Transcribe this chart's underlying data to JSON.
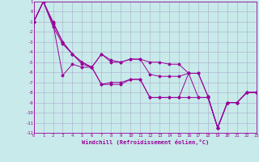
{
  "xlabel": "Windchill (Refroidissement éolien,°C)",
  "bg_color": "#c8eaea",
  "line_color": "#990099",
  "grid_color": "#aaaacc",
  "xlim": [
    0,
    23
  ],
  "ylim": [
    -12,
    1
  ],
  "yticks": [
    1,
    0,
    -1,
    -2,
    -3,
    -4,
    -5,
    -6,
    -7,
    -8,
    -9,
    -10,
    -11,
    -12
  ],
  "xticks": [
    0,
    1,
    2,
    3,
    4,
    5,
    6,
    7,
    8,
    9,
    10,
    11,
    12,
    13,
    14,
    15,
    16,
    17,
    18,
    19,
    20,
    21,
    22,
    23
  ],
  "lines": {
    "line1": [
      [
        0,
        -1.0
      ],
      [
        1,
        1.0
      ],
      [
        2,
        -1.0
      ],
      [
        3,
        -3.0
      ],
      [
        4,
        -4.2
      ],
      [
        5,
        -5.0
      ],
      [
        6,
        -5.5
      ],
      [
        7,
        -4.2
      ],
      [
        8,
        -5.0
      ],
      [
        9,
        -5.0
      ],
      [
        10,
        -4.7
      ],
      [
        11,
        -4.7
      ],
      [
        12,
        -5.0
      ],
      [
        13,
        -5.0
      ],
      [
        14,
        -5.2
      ],
      [
        15,
        -5.2
      ],
      [
        16,
        -6.1
      ],
      [
        17,
        -6.1
      ],
      [
        18,
        -8.4
      ],
      [
        19,
        -11.5
      ],
      [
        20,
        -9.0
      ],
      [
        21,
        -9.0
      ],
      [
        22,
        -8.0
      ],
      [
        23,
        -8.0
      ]
    ],
    "line2": [
      [
        0,
        -1.0
      ],
      [
        1,
        1.0
      ],
      [
        2,
        -1.2
      ],
      [
        3,
        -6.3
      ],
      [
        4,
        -5.2
      ],
      [
        5,
        -5.5
      ],
      [
        6,
        -5.5
      ],
      [
        7,
        -7.2
      ],
      [
        8,
        -7.0
      ],
      [
        9,
        -7.0
      ],
      [
        10,
        -6.7
      ],
      [
        11,
        -6.7
      ],
      [
        12,
        -8.5
      ],
      [
        13,
        -8.5
      ],
      [
        14,
        -8.5
      ],
      [
        15,
        -8.5
      ],
      [
        16,
        -8.5
      ],
      [
        17,
        -8.5
      ],
      [
        18,
        -8.5
      ],
      [
        19,
        -11.5
      ],
      [
        20,
        -9.0
      ],
      [
        21,
        -9.0
      ],
      [
        22,
        -8.0
      ],
      [
        23,
        -8.0
      ]
    ],
    "line3": [
      [
        0,
        -1.0
      ],
      [
        1,
        1.0
      ],
      [
        2,
        -1.2
      ],
      [
        3,
        -3.0
      ],
      [
        4,
        -4.2
      ],
      [
        5,
        -5.2
      ],
      [
        6,
        -5.5
      ],
      [
        7,
        -4.2
      ],
      [
        8,
        -4.8
      ],
      [
        9,
        -5.0
      ],
      [
        10,
        -4.7
      ],
      [
        11,
        -4.7
      ],
      [
        12,
        -6.2
      ],
      [
        13,
        -6.4
      ],
      [
        14,
        -6.4
      ],
      [
        15,
        -6.4
      ],
      [
        16,
        -6.1
      ],
      [
        17,
        -6.1
      ],
      [
        18,
        -8.4
      ],
      [
        19,
        -11.5
      ],
      [
        20,
        -9.0
      ],
      [
        21,
        -9.0
      ],
      [
        22,
        -8.0
      ],
      [
        23,
        -8.0
      ]
    ],
    "line4": [
      [
        0,
        -1.0
      ],
      [
        1,
        1.0
      ],
      [
        2,
        -1.5
      ],
      [
        3,
        -3.2
      ],
      [
        4,
        -4.2
      ],
      [
        5,
        -5.0
      ],
      [
        6,
        -5.5
      ],
      [
        7,
        -7.2
      ],
      [
        8,
        -7.2
      ],
      [
        9,
        -7.2
      ],
      [
        10,
        -6.7
      ],
      [
        11,
        -6.7
      ],
      [
        12,
        -8.5
      ],
      [
        13,
        -8.5
      ],
      [
        14,
        -8.5
      ],
      [
        15,
        -8.5
      ],
      [
        16,
        -6.1
      ],
      [
        17,
        -8.5
      ],
      [
        18,
        -8.5
      ],
      [
        19,
        -11.5
      ],
      [
        20,
        -9.0
      ],
      [
        21,
        -9.0
      ],
      [
        22,
        -8.0
      ],
      [
        23,
        -8.0
      ]
    ]
  }
}
